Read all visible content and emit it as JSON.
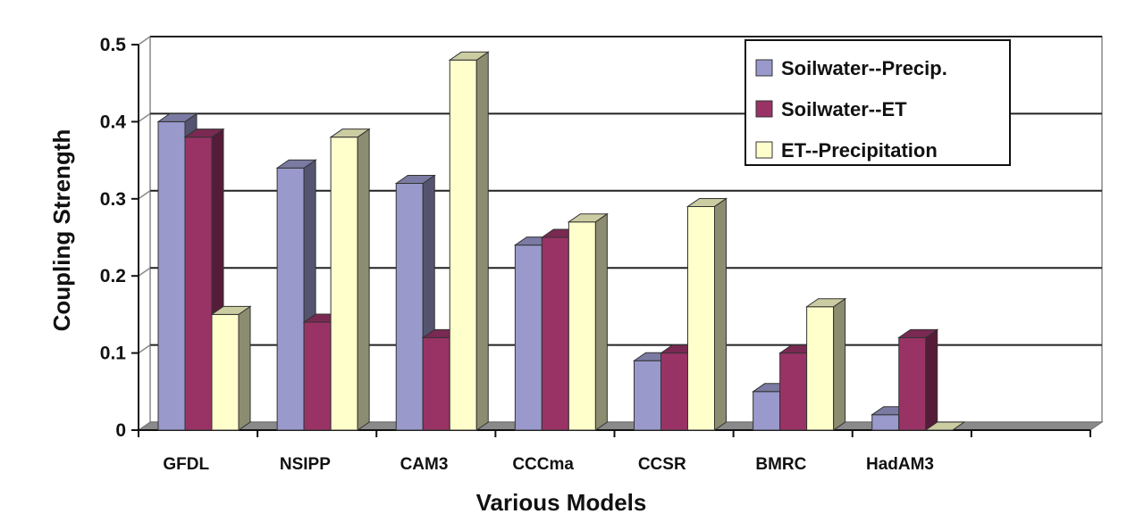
{
  "chart_data": {
    "type": "bar",
    "xlabel": "Various Models",
    "ylabel": "Coupling Strength",
    "ylim": [
      0,
      0.5
    ],
    "yticks": [
      0,
      0.1,
      0.2,
      0.3,
      0.4,
      0.5
    ],
    "ytick_labels": [
      "0",
      "0.1",
      "0.2",
      "0.3",
      "0.4",
      "0.5"
    ],
    "categories": [
      "GFDL",
      "NSIPP",
      "CAM3",
      "CCCma",
      "CCSR",
      "BMRC",
      "HadAM3",
      ""
    ],
    "series": [
      {
        "name": "Soilwater--Precip.",
        "color": "#9999CC",
        "values": [
          0.4,
          0.34,
          0.32,
          0.24,
          0.09,
          0.05,
          0.02,
          null
        ]
      },
      {
        "name": "Soilwater--ET",
        "color": "#993366",
        "values": [
          0.38,
          0.14,
          0.12,
          0.25,
          0.1,
          0.1,
          0.12,
          null
        ]
      },
      {
        "name": "ET--Precipitation",
        "color": "#FFFFCC",
        "values": [
          0.15,
          0.38,
          0.48,
          0.27,
          0.29,
          0.16,
          0.0,
          null
        ]
      }
    ],
    "grid": true,
    "legend": "top-right",
    "style": "3d-clustered-bar"
  }
}
